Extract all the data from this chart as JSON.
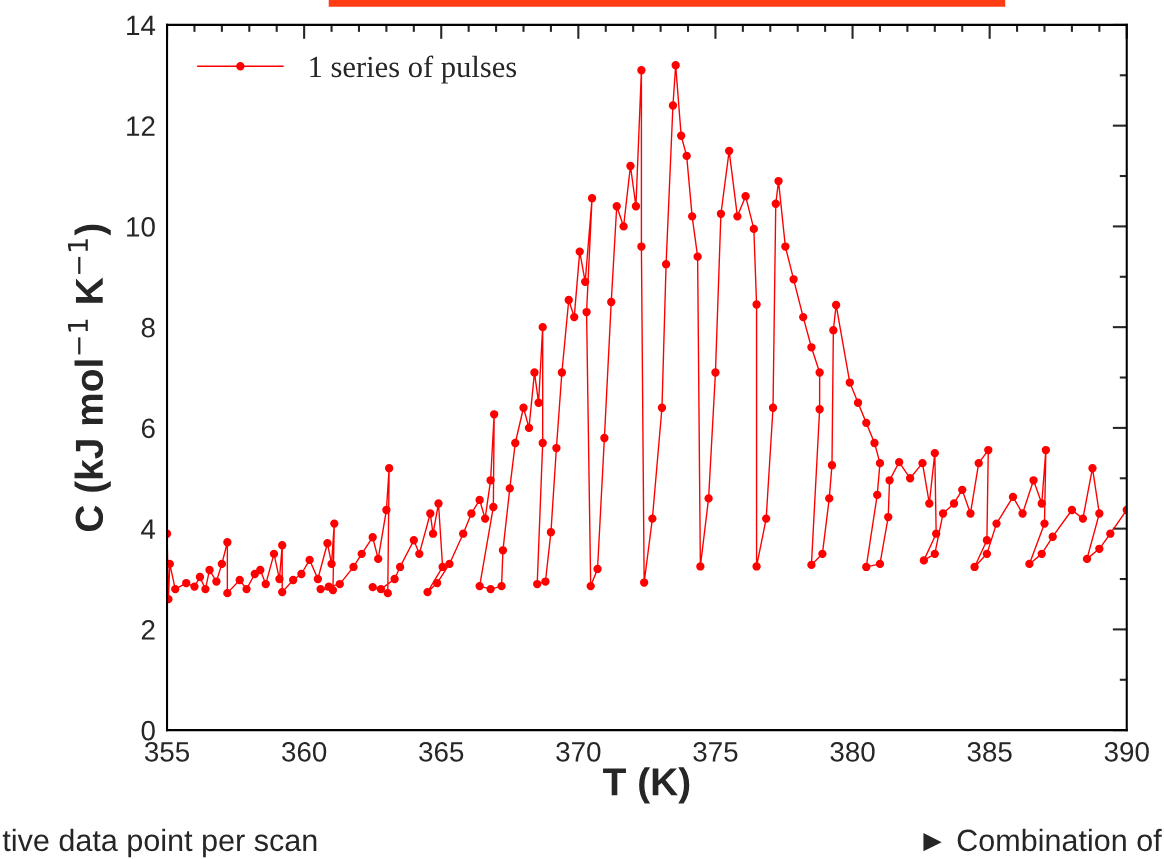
{
  "chart_data": {
    "type": "line",
    "xlabel": "T (K)",
    "ylabel": "C (kJ mol$^{−1}$ K$^{−1}$)",
    "xlim": [
      355,
      390
    ],
    "xticks": [
      355,
      360,
      365,
      370,
      375,
      380,
      385,
      390
    ],
    "ylim": [
      0,
      14
    ],
    "yticks": [
      0,
      2,
      4,
      6,
      8,
      10,
      12,
      14
    ],
    "grid": false,
    "legend": "top left",
    "marker": "circle",
    "line_style": "solid",
    "annotations": [
      "tive data point per scan",
      "► Combination of"
    ],
    "series": [
      {
        "name": "1 series of pulses",
        "color": "#ff0000",
        "x": [
          355.0,
          355.05,
          355.1,
          355.3,
          355.7,
          356.0,
          356.2,
          356.4,
          356.55,
          356.8,
          357.0,
          357.2,
          357.2,
          357.65,
          357.9,
          358.2,
          358.4,
          358.6,
          358.9,
          359.1,
          359.2,
          359.2,
          359.6,
          359.9,
          360.2,
          360.5,
          360.85,
          361.0,
          361.1,
          361.05,
          360.6,
          360.9,
          361.3,
          361.8,
          362.1,
          362.5,
          362.7,
          363.0,
          363.1,
          363.05,
          362.5,
          362.8,
          363.3,
          363.5,
          364.0,
          364.2,
          364.6,
          364.7,
          364.9,
          365.05,
          364.5,
          364.85,
          365.3,
          365.8,
          366.1,
          366.4,
          366.6,
          366.8,
          366.93,
          366.9,
          366.4,
          366.8,
          367.2,
          367.25,
          367.5,
          367.7,
          368.0,
          368.2,
          368.4,
          368.55,
          368.7,
          368.7,
          368.5,
          368.8,
          369.0,
          369.2,
          369.4,
          369.65,
          369.85,
          370.05,
          370.25,
          370.5,
          370.3,
          370.45,
          370.7,
          370.95,
          371.2,
          371.4,
          371.65,
          371.9,
          372.1,
          372.3,
          372.3,
          372.4,
          372.7,
          373.05,
          373.2,
          373.45,
          373.55,
          373.75,
          373.95,
          374.15,
          374.35,
          374.45,
          374.75,
          375.0,
          375.2,
          375.5,
          375.8,
          376.1,
          376.4,
          376.5,
          376.5,
          376.85,
          377.1,
          377.2,
          377.3,
          377.55,
          377.85,
          378.2,
          378.5,
          378.8,
          378.8,
          378.5,
          378.9,
          379.15,
          379.25,
          379.3,
          379.4,
          379.9,
          380.2,
          380.5,
          380.8,
          381.0,
          380.9,
          380.5,
          381.0,
          381.3,
          381.35,
          381.7,
          382.1,
          382.55,
          382.8,
          383.0,
          383.05,
          382.6,
          383.0,
          383.3,
          383.7,
          384.0,
          384.3,
          384.6,
          384.95,
          384.9,
          384.45,
          384.9,
          385.25,
          385.85,
          386.2,
          386.6,
          386.9,
          387.05,
          387.0,
          386.45,
          386.9,
          387.3,
          388.0,
          388.4,
          388.75,
          389.0,
          388.55,
          389.0,
          389.4,
          390.0
        ],
        "values": [
          3.9,
          2.6,
          3.3,
          2.8,
          2.92,
          2.85,
          3.04,
          2.8,
          3.18,
          2.95,
          3.3,
          3.73,
          2.72,
          2.98,
          2.8,
          3.1,
          3.18,
          2.9,
          3.5,
          3.0,
          3.67,
          2.74,
          2.98,
          3.1,
          3.38,
          3.0,
          3.71,
          3.3,
          4.1,
          2.78,
          2.8,
          2.85,
          2.9,
          3.24,
          3.5,
          3.83,
          3.4,
          4.37,
          5.2,
          2.72,
          2.84,
          2.8,
          3.0,
          3.24,
          3.77,
          3.5,
          4.3,
          3.9,
          4.5,
          3.24,
          2.74,
          2.92,
          3.3,
          3.9,
          4.3,
          4.57,
          4.2,
          4.96,
          6.27,
          4.43,
          2.86,
          2.8,
          2.86,
          3.57,
          4.8,
          5.7,
          6.4,
          6.0,
          7.1,
          6.5,
          8.0,
          5.7,
          2.9,
          2.95,
          3.93,
          5.6,
          7.1,
          8.54,
          8.2,
          9.5,
          8.9,
          10.56,
          8.3,
          2.86,
          3.2,
          5.8,
          8.5,
          10.4,
          10.0,
          11.2,
          10.4,
          13.1,
          9.6,
          2.93,
          4.2,
          6.4,
          9.25,
          12.4,
          13.2,
          11.8,
          11.4,
          10.2,
          9.4,
          3.25,
          4.6,
          7.1,
          10.25,
          11.5,
          10.2,
          10.6,
          9.95,
          8.45,
          3.25,
          4.2,
          6.4,
          10.45,
          10.9,
          9.6,
          8.95,
          8.2,
          7.6,
          7.1,
          6.37,
          3.28,
          3.5,
          4.6,
          5.26,
          7.94,
          8.44,
          6.9,
          6.5,
          6.1,
          5.7,
          5.3,
          4.67,
          3.24,
          3.3,
          4.23,
          4.96,
          5.32,
          5.0,
          5.3,
          4.5,
          5.5,
          3.9,
          3.37,
          3.5,
          4.3,
          4.5,
          4.77,
          4.3,
          5.3,
          5.56,
          3.77,
          3.24,
          3.5,
          4.1,
          4.63,
          4.3,
          4.96,
          4.5,
          5.56,
          4.1,
          3.3,
          3.5,
          3.84,
          4.37,
          4.2,
          5.2,
          4.3,
          3.4,
          3.6,
          3.9,
          4.37
        ]
      }
    ]
  }
}
